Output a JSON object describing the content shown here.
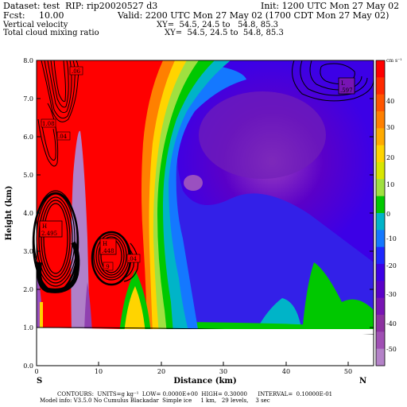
{
  "header": {
    "dataset": "Dataset: test  RIP: rip20020527 d3",
    "init": "Init: 1200 UTC Mon 27 May 02",
    "fcst": "Fcst:     10.00",
    "valid": "Valid: 2200 UTC Mon 27 May 02 (1700 CDT Mon 27 May 02)",
    "field1": "Vertical velocity",
    "field1_xy": "XY=  54.5, 24.5 to   54.8, 85.3",
    "field2": "Total cloud mixing ratio",
    "field2_xy": "XY=  54.5, 24.5 to  54.8, 85.3"
  },
  "axes": {
    "ylabel": "Height (km)",
    "xlabel": "Distance (km)",
    "yticks": [
      "0.0",
      "1.0",
      "2.0",
      "3.0",
      "4.0",
      "5.0",
      "6.0",
      "7.0",
      "8.0"
    ],
    "xticks": [
      "0",
      "10",
      "20",
      "30",
      "40",
      "50"
    ],
    "left_end": "S",
    "right_end": "N"
  },
  "colorbar": {
    "units": "cm s⁻¹",
    "labels": [
      "40",
      "30",
      "20",
      "10",
      "0",
      "-10",
      "-20",
      "-30",
      "-40",
      "-50"
    ],
    "colors": [
      "#ff0000",
      "#ff2a00",
      "#ff5500",
      "#ff8000",
      "#ffaa00",
      "#ffd400",
      "#d8e600",
      "#a0e040",
      "#00c800",
      "#00b4c8",
      "#1478ff",
      "#1e28ff",
      "#3c00e6",
      "#5a00c8",
      "#7814b4",
      "#8c32a0",
      "#a050b4",
      "#b482c8"
    ]
  },
  "annotations": [
    {
      "label": "H\n2.495"
    },
    {
      "label": "H\n.448"
    },
    {
      "label": "L\n.597"
    },
    {
      "label": "0.6"
    },
    {
      "label": "1.08"
    },
    {
      "label": ".04"
    },
    {
      "label": ".9"
    },
    {
      "label": ".04"
    }
  ],
  "footer": {
    "line1": "CONTOURS:  UNITS=g kg⁻¹  LOW= 0.0000E+00  HIGH= 0.30000      INTERVAL=  0.10000E-01",
    "line2": "Model info: V3.5.0 No Cumulus Blackadar  Simple ice     1 km,   29 levels,    3 sec"
  }
}
